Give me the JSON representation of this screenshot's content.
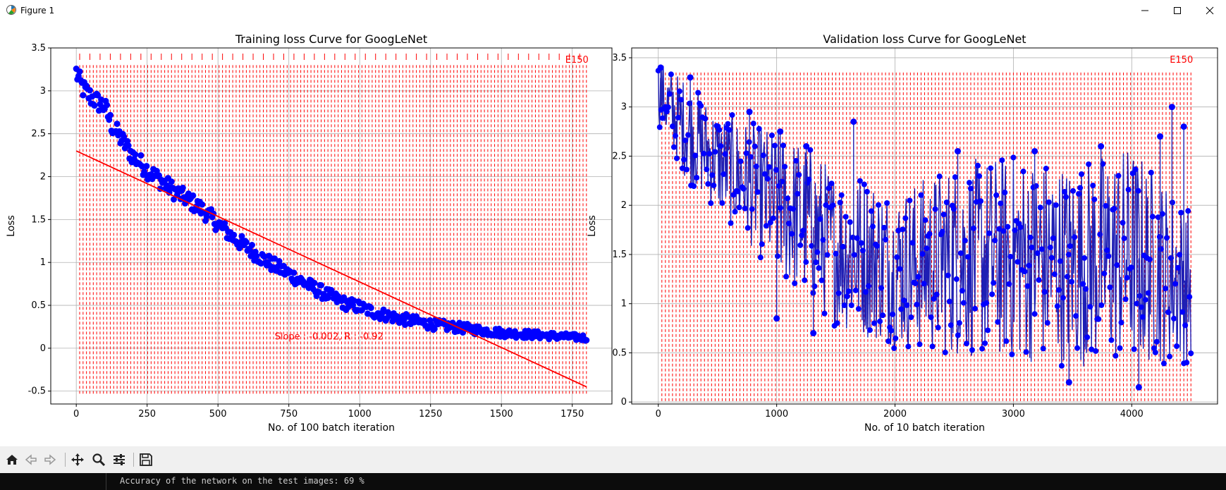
{
  "window": {
    "title": "Figure 1",
    "icon": "matplotlib-icon",
    "controls": [
      "minimize-icon",
      "maximize-icon",
      "close-icon"
    ]
  },
  "toolbar": {
    "buttons": [
      "home-icon",
      "back-icon",
      "forward-icon",
      "pan-icon",
      "zoom-icon",
      "configure-subplots-icon",
      "save-icon"
    ]
  },
  "console": {
    "text": "Accuracy of the network on the test images: 69 %"
  },
  "colors": {
    "points": "#0000ff",
    "validation_line": "#1f1fb4",
    "fit_line": "#ff0000",
    "epoch_lines": "#ff0000",
    "console_bg": "#0c0c0c"
  },
  "chart_data": [
    {
      "type": "scatter",
      "title": "Training loss Curve for GoogLeNet",
      "xlabel": "No. of 100 batch iteration",
      "ylabel": "Loss",
      "xlim": [
        -90,
        1890
      ],
      "ylim": [
        -0.65,
        3.5
      ],
      "xticks": [
        0,
        250,
        500,
        750,
        1000,
        1250,
        1500,
        1750
      ],
      "yticks": [
        -0.5,
        0.0,
        0.5,
        1.0,
        1.5,
        2.0,
        2.5,
        3.0,
        3.5
      ],
      "grid": true,
      "series": [
        {
          "style": "markers",
          "color": "#0000ff",
          "points": [
            [
              0,
              3.22
            ],
            [
              10,
              3.12
            ],
            [
              25,
              3.02
            ],
            [
              50,
              2.93
            ],
            [
              75,
              2.87
            ],
            [
              100,
              2.82
            ],
            [
              125,
              2.6
            ],
            [
              150,
              2.48
            ],
            [
              175,
              2.36
            ],
            [
              200,
              2.24
            ],
            [
              250,
              2.08
            ],
            [
              300,
              1.95
            ],
            [
              350,
              1.82
            ],
            [
              400,
              1.72
            ],
            [
              450,
              1.6
            ],
            [
              500,
              1.45
            ],
            [
              550,
              1.3
            ],
            [
              600,
              1.18
            ],
            [
              650,
              1.06
            ],
            [
              700,
              0.96
            ],
            [
              750,
              0.87
            ],
            [
              800,
              0.77
            ],
            [
              850,
              0.68
            ],
            [
              900,
              0.6
            ],
            [
              950,
              0.52
            ],
            [
              1000,
              0.48
            ],
            [
              1050,
              0.42
            ],
            [
              1100,
              0.38
            ],
            [
              1150,
              0.34
            ],
            [
              1200,
              0.31
            ],
            [
              1250,
              0.28
            ],
            [
              1300,
              0.26
            ],
            [
              1350,
              0.24
            ],
            [
              1400,
              0.22
            ],
            [
              1450,
              0.2
            ],
            [
              1500,
              0.18
            ],
            [
              1550,
              0.17
            ],
            [
              1600,
              0.16
            ],
            [
              1650,
              0.15
            ],
            [
              1700,
              0.14
            ],
            [
              1750,
              0.13
            ],
            [
              1800,
              0.12
            ]
          ]
        },
        {
          "style": "line",
          "name": "fit",
          "color": "#ff0000",
          "points": [
            [
              0,
              2.3
            ],
            [
              1800,
              -0.45
            ]
          ]
        }
      ],
      "epoch_lines": {
        "count": 150,
        "last_label": "E150",
        "x_max": 1800,
        "y_range": [
          -0.55,
          3.3
        ]
      },
      "annotations": [
        {
          "text": "Slope : -0.002, R : -0.92",
          "x": 700,
          "y": 0.1,
          "color": "#ff0000"
        }
      ]
    },
    {
      "type": "line",
      "title": "Validation loss Curve for GoogLeNet",
      "xlabel": "No. of 10 batch iteration",
      "ylabel": "Loss",
      "xlim": [
        -225,
        4725
      ],
      "ylim": [
        -0.02,
        3.6
      ],
      "xticks": [
        0,
        1000,
        2000,
        3000,
        4000
      ],
      "yticks": [
        0.0,
        0.5,
        1.0,
        1.5,
        2.0,
        2.5,
        3.0,
        3.5
      ],
      "grid": true,
      "series": [
        {
          "style": "line-markers",
          "color": "#1f1fb4",
          "marker_color": "#0000ff",
          "envelope": [
            [
              0,
              2.8,
              3.5
            ],
            [
              250,
              2.2,
              3.3
            ],
            [
              500,
              1.9,
              3.0
            ],
            [
              750,
              1.6,
              2.9
            ],
            [
              1000,
              1.2,
              2.8
            ],
            [
              1250,
              1.0,
              2.7
            ],
            [
              1500,
              0.7,
              2.4
            ],
            [
              1750,
              0.6,
              2.4
            ],
            [
              2000,
              0.5,
              2.2
            ],
            [
              2500,
              0.4,
              2.5
            ],
            [
              3000,
              0.35,
              2.6
            ],
            [
              3500,
              0.3,
              2.5
            ],
            [
              4000,
              0.3,
              2.7
            ],
            [
              4500,
              0.35,
              2.0
            ]
          ],
          "spikes": [
            [
              20,
              3.4
            ],
            [
              270,
              3.3
            ],
            [
              770,
              2.95
            ],
            [
              1030,
              2.75
            ],
            [
              1250,
              2.6
            ],
            [
              1650,
              2.85
            ],
            [
              2530,
              2.55
            ],
            [
              3180,
              2.55
            ],
            [
              3740,
              2.6
            ],
            [
              4240,
              2.7
            ],
            [
              4340,
              3.0
            ],
            [
              4440,
              2.8
            ],
            [
              1000,
              0.85
            ],
            [
              1310,
              0.7
            ],
            [
              3470,
              0.2
            ],
            [
              4060,
              0.15
            ]
          ]
        }
      ],
      "epoch_lines": {
        "count": 150,
        "last_label": "E150",
        "x_max": 4500,
        "y_range": [
          0.0,
          3.35
        ]
      }
    }
  ]
}
